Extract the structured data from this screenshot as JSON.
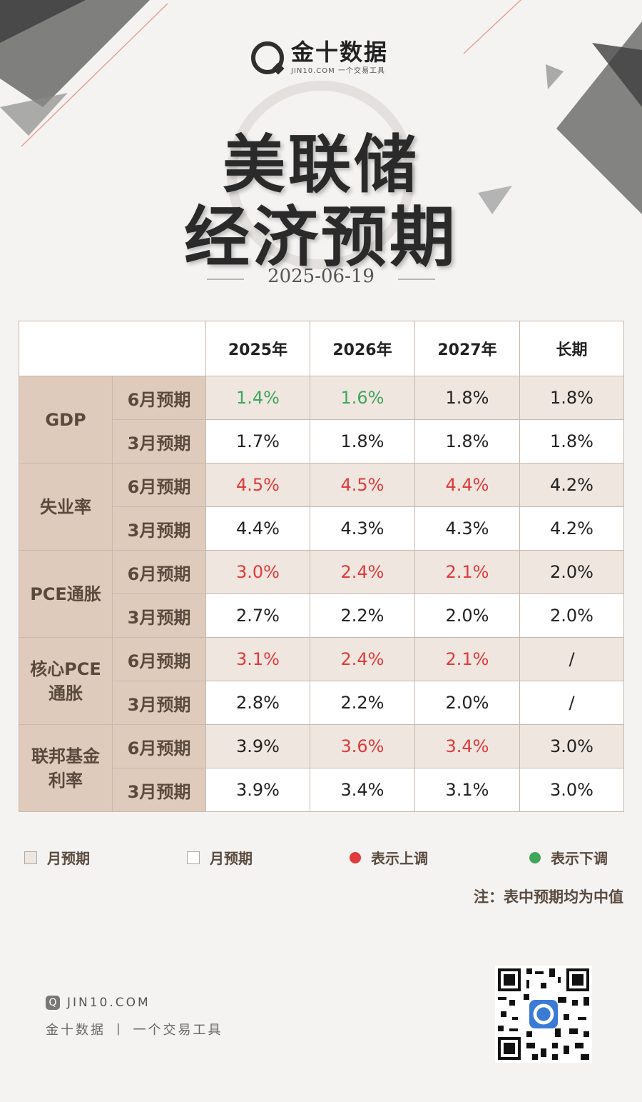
{
  "header": {
    "brand_name": "金十数据",
    "brand_sub": "JIN10.COM 一个交易工具",
    "title_line1": "美联储",
    "title_line2": "经济预期",
    "date": "2025-06-19"
  },
  "table": {
    "columns": [
      "2025年",
      "2026年",
      "2027年",
      "长期"
    ],
    "groups": [
      {
        "category": "GDP",
        "rows": [
          {
            "label": "6月预期",
            "values": [
              "1.4%",
              "1.6%",
              "1.8%",
              "1.8%"
            ],
            "trend": [
              "down",
              "down",
              "neutral",
              "neutral"
            ]
          },
          {
            "label": "3月预期",
            "values": [
              "1.7%",
              "1.8%",
              "1.8%",
              "1.8%"
            ],
            "trend": [
              "neutral",
              "neutral",
              "neutral",
              "neutral"
            ]
          }
        ]
      },
      {
        "category": "失业率",
        "rows": [
          {
            "label": "6月预期",
            "values": [
              "4.5%",
              "4.5%",
              "4.4%",
              "4.2%"
            ],
            "trend": [
              "up",
              "up",
              "up",
              "neutral"
            ]
          },
          {
            "label": "3月预期",
            "values": [
              "4.4%",
              "4.3%",
              "4.3%",
              "4.2%"
            ],
            "trend": [
              "neutral",
              "neutral",
              "neutral",
              "neutral"
            ]
          }
        ]
      },
      {
        "category": "PCE通胀",
        "rows": [
          {
            "label": "6月预期",
            "values": [
              "3.0%",
              "2.4%",
              "2.1%",
              "2.0%"
            ],
            "trend": [
              "up",
              "up",
              "up",
              "neutral"
            ]
          },
          {
            "label": "3月预期",
            "values": [
              "2.7%",
              "2.2%",
              "2.0%",
              "2.0%"
            ],
            "trend": [
              "neutral",
              "neutral",
              "neutral",
              "neutral"
            ]
          }
        ]
      },
      {
        "category": "核心PCE通胀",
        "category_lines": [
          "核心PCE",
          "通胀"
        ],
        "rows": [
          {
            "label": "6月预期",
            "values": [
              "3.1%",
              "2.4%",
              "2.1%",
              "/"
            ],
            "trend": [
              "up",
              "up",
              "up",
              "neutral"
            ]
          },
          {
            "label": "3月预期",
            "values": [
              "2.8%",
              "2.2%",
              "2.0%",
              "/"
            ],
            "trend": [
              "neutral",
              "neutral",
              "neutral",
              "neutral"
            ]
          }
        ]
      },
      {
        "category": "联邦基金利率",
        "category_lines": [
          "联邦基金",
          "利率"
        ],
        "rows": [
          {
            "label": "6月预期",
            "values": [
              "3.9%",
              "3.6%",
              "3.4%",
              "3.0%"
            ],
            "trend": [
              "neutral",
              "up",
              "up",
              "neutral"
            ]
          },
          {
            "label": "3月预期",
            "values": [
              "3.9%",
              "3.4%",
              "3.1%",
              "3.0%"
            ],
            "trend": [
              "neutral",
              "neutral",
              "neutral",
              "neutral"
            ]
          }
        ]
      }
    ]
  },
  "legend": {
    "june_label": "月预期",
    "march_label": "月预期",
    "up_label": "表示上调",
    "down_label": "表示下调"
  },
  "note": "注：表中预期均为中值",
  "footer": {
    "url": "JIN10.COM",
    "tagline": "金十数据 丨 一个交易工具"
  },
  "colors": {
    "up": "#e03a3a",
    "down": "#3fa65a",
    "category_bg": "#dfcbbc",
    "june_row_bg": "#efe6e0"
  }
}
